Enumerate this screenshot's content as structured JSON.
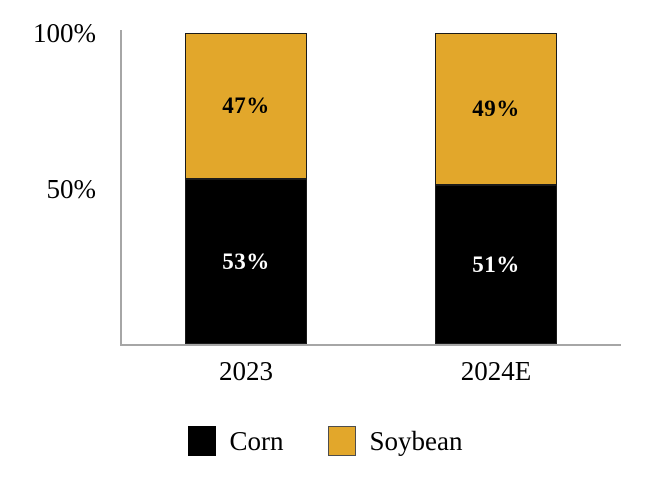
{
  "chart_data": {
    "type": "bar",
    "stacked": true,
    "percent_stacked": true,
    "title": "",
    "xlabel": "",
    "ylabel": "",
    "categories": [
      "2023",
      "2024E"
    ],
    "series": [
      {
        "name": "Corn",
        "color": "#000000",
        "label_color": "#ffffff",
        "values": [
          53,
          51
        ],
        "labels": [
          "53%",
          "51%"
        ]
      },
      {
        "name": "Soybean",
        "color": "#e2a72b",
        "label_color": "#000000",
        "values": [
          47,
          49
        ],
        "labels": [
          "47%",
          "49%"
        ]
      }
    ],
    "y_axis": {
      "ylim": [
        0,
        100
      ],
      "ticks": [
        {
          "label": "100%",
          "value": 100
        },
        {
          "label": "50%",
          "value": 50
        }
      ],
      "gridlines": false
    },
    "legend": {
      "position": "bottom",
      "items": [
        {
          "label": "Corn",
          "color": "#000000",
          "border": "#000000"
        },
        {
          "label": "Soybean",
          "color": "#e2a72b",
          "border": "#4d4d4d"
        }
      ]
    },
    "axis_color": "#a6a6a6",
    "segment_border_color": "#1a1a1a"
  }
}
